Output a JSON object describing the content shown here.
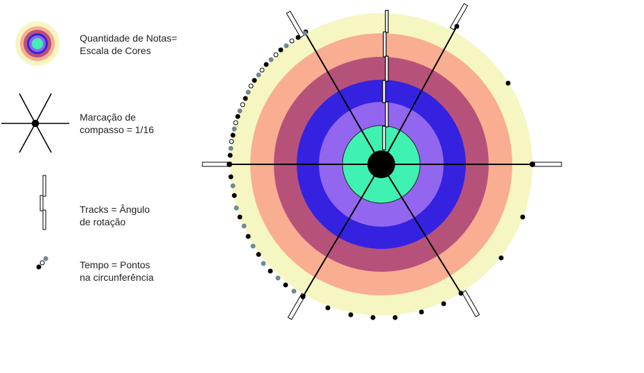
{
  "legend": {
    "notes": {
      "line1": "Quantidade de Notas=",
      "line2": "Escala de Cores",
      "icon": "concentric-rings-icon"
    },
    "compass": {
      "line1": "Marcação de",
      "line2": "compasso = 1/16",
      "icon": "six-spoke-star-icon"
    },
    "tracks": {
      "line1": "Tracks = Ângulo",
      "line2": "de rotação",
      "icon": "offset-bars-icon"
    },
    "time": {
      "line1": "Tempo = Pontos",
      "line2": "na circunferência",
      "icon": "dot-trail-icon"
    }
  },
  "colors": {
    "ring_outer": "#f6f6c2",
    "ring_salmon": "#f9ad91",
    "ring_plum": "#b6527a",
    "ring_blue": "#3522e0",
    "ring_lavender": "#9366f0",
    "ring_center": "#3ff2b2",
    "hub": "#000000",
    "dot_black": "#000000",
    "dot_gray": "#6f8a93"
  }
}
